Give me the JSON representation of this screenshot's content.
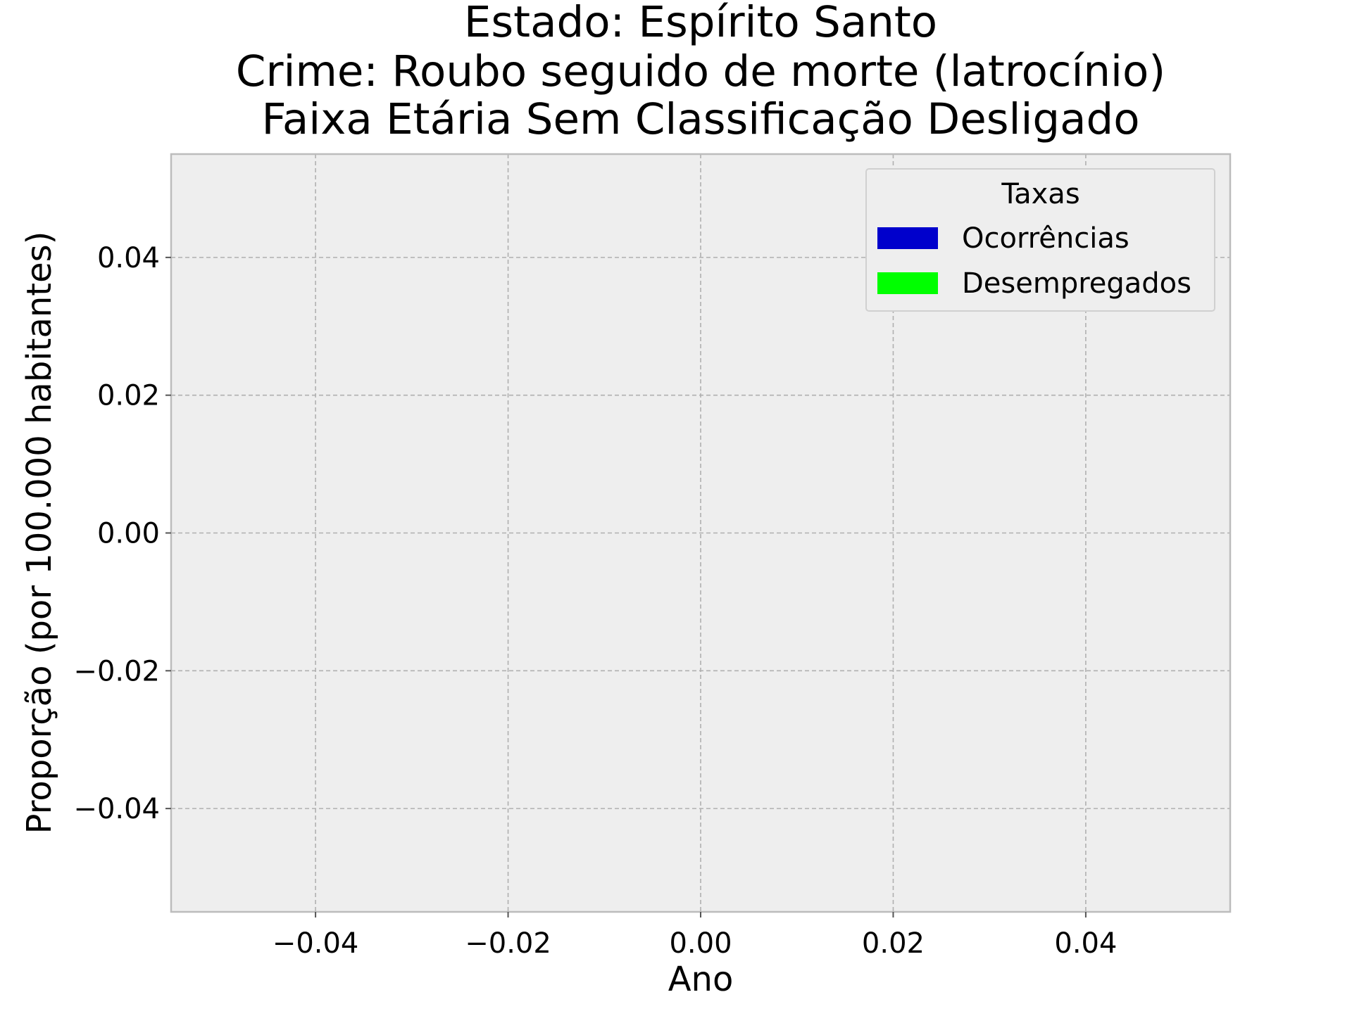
{
  "chart_data": {
    "type": "bar",
    "title_lines": [
      "Estado: Espírito Santo",
      "Crime: Roubo seguido de morte (latrocínio)",
      "Faixa Etária Sem Classificação   Desligado"
    ],
    "xlabel": "Ano",
    "ylabel": "Proporção (por 100.000 habitantes)",
    "xlim": [
      -0.055,
      0.055
    ],
    "ylim": [
      -0.055,
      0.055
    ],
    "x_ticks": [
      -0.04,
      -0.02,
      0.0,
      0.02,
      0.04
    ],
    "y_ticks": [
      -0.04,
      -0.02,
      0.0,
      0.02,
      0.04
    ],
    "x_tick_labels": [
      "−0.04",
      "−0.02",
      "0.00",
      "0.02",
      "0.04"
    ],
    "y_tick_labels": [
      "−0.04",
      "−0.02",
      "0.00",
      "0.02",
      "0.04"
    ],
    "grid": true,
    "legend": {
      "title": "Taxas",
      "placement": "top-right",
      "entries": [
        {
          "label": "Ocorrências",
          "color": "#0000cc"
        },
        {
          "label": "Desempregados",
          "color": "#00ff00"
        }
      ]
    },
    "series": [
      {
        "name": "Ocorrências",
        "color": "#0000cc",
        "values": []
      },
      {
        "name": "Desempregados",
        "color": "#00ff00",
        "values": []
      }
    ],
    "colors": {
      "plot_background": "#eeeeee",
      "grid": "#b0b0b0",
      "frame": "#bcbcbc"
    }
  }
}
